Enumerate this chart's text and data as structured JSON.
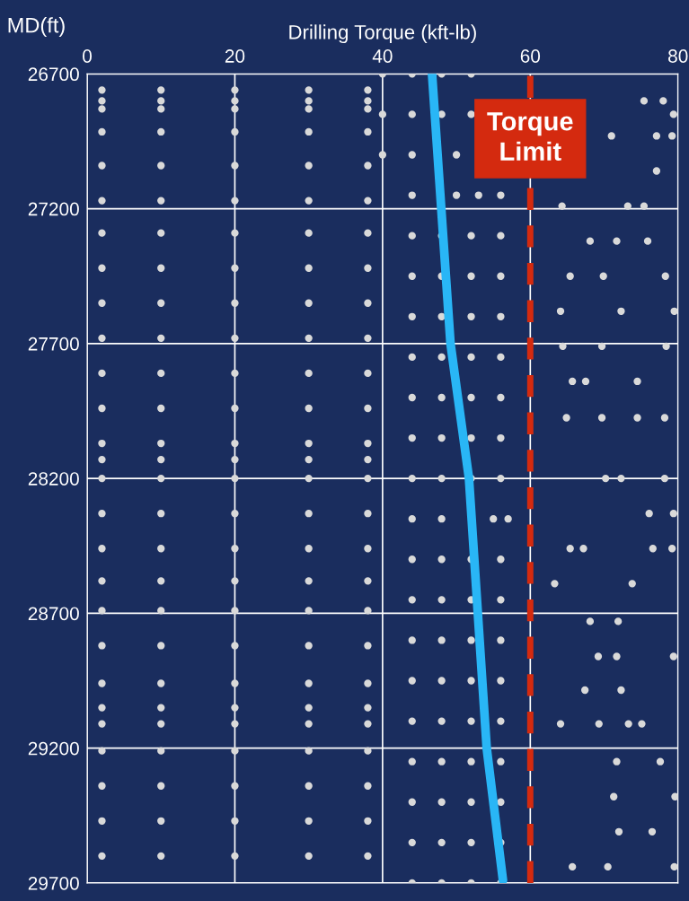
{
  "chart_data": {
    "type": "scatter",
    "xlabel": "Drilling Torque (kft-lb)",
    "ylabel": "MD(ft)",
    "xlim": [
      0,
      80
    ],
    "xticks": [
      0,
      20,
      40,
      60,
      80
    ],
    "ylim": [
      29700,
      26700
    ],
    "yticks": [
      26700,
      27200,
      27700,
      28200,
      28700,
      29200,
      29700
    ],
    "grid": true,
    "marker": "circle",
    "ref_lines": [
      {
        "axis": "x",
        "value": 60,
        "label": "Torque Limit",
        "color": "#d42a0f",
        "line_style": "dashed"
      }
    ],
    "series": [
      {
        "type": "scatter",
        "color": "#d9d9d9",
        "x": [
          2,
          10,
          20,
          30,
          38,
          2,
          10,
          20,
          30,
          38,
          2,
          10,
          20,
          30,
          38,
          2,
          10,
          20,
          30,
          38,
          2,
          10,
          20,
          30,
          38,
          2,
          10,
          20,
          30,
          38,
          2,
          10,
          20,
          30,
          38,
          2,
          10,
          20,
          30,
          38,
          2,
          10,
          20,
          30,
          38,
          2,
          10,
          20,
          30,
          38,
          2,
          10,
          20,
          30,
          38,
          2,
          10,
          20,
          30,
          38,
          2,
          10,
          20,
          30,
          38,
          2,
          10,
          20,
          30,
          38,
          2,
          10,
          20,
          30,
          38,
          2,
          10,
          20,
          30,
          38,
          2,
          10,
          20,
          30,
          38,
          2,
          10,
          20,
          30,
          38,
          2,
          10,
          20,
          30,
          38,
          2,
          10,
          20,
          30,
          38,
          2,
          10,
          20,
          30,
          38,
          2,
          10,
          20,
          30,
          38,
          2,
          10,
          20,
          30,
          38,
          2,
          10,
          20,
          30,
          38,
          2,
          10,
          20,
          30,
          38,
          2,
          10,
          20,
          30,
          38,
          2,
          10,
          20,
          30,
          38
        ],
        "values": [
          26760,
          26760,
          26760,
          26760,
          26760,
          26800,
          26800,
          26800,
          26800,
          26800,
          26830,
          26830,
          26830,
          26830,
          26830,
          26915,
          26915,
          26915,
          26915,
          26915,
          27040,
          27040,
          27040,
          27040,
          27040,
          27170,
          27170,
          27170,
          27170,
          27170,
          27290,
          27290,
          27290,
          27290,
          27290,
          27420,
          27420,
          27420,
          27420,
          27420,
          27550,
          27550,
          27550,
          27550,
          27550,
          27680,
          27680,
          27680,
          27680,
          27680,
          27810,
          27810,
          27810,
          27810,
          27810,
          27940,
          27940,
          27940,
          27940,
          27940,
          28070,
          28070,
          28070,
          28070,
          28070,
          28130,
          28130,
          28130,
          28130,
          28130,
          28200,
          28200,
          28200,
          28200,
          28200,
          28330,
          28330,
          28330,
          28330,
          28330,
          28460,
          28460,
          28460,
          28460,
          28460,
          28580,
          28580,
          28580,
          28580,
          28580,
          28690,
          28690,
          28690,
          28690,
          28690,
          28820,
          28820,
          28820,
          28820,
          28820,
          28960,
          28960,
          28960,
          28960,
          28960,
          29050,
          29050,
          29050,
          29050,
          29050,
          29110,
          29110,
          29110,
          29110,
          29110,
          29210,
          29210,
          29210,
          29210,
          29210,
          29340,
          29340,
          29340,
          29340,
          29340,
          29470,
          29470,
          29470,
          29470,
          29470,
          29600,
          29600,
          29600,
          29600,
          29600
        ]
      },
      {
        "color": "#d9d9d9",
        "x": [
          40,
          44,
          48,
          52,
          40,
          44,
          48,
          52,
          40,
          44,
          50,
          44,
          50,
          53,
          56,
          44,
          48,
          52,
          56,
          44,
          48,
          52,
          56,
          44,
          48,
          52,
          56,
          44,
          48,
          52,
          56,
          44,
          48,
          52,
          56,
          44,
          48,
          52,
          56,
          44,
          48,
          52,
          56,
          44,
          48,
          55,
          57,
          44,
          48,
          52,
          56,
          44,
          48,
          52,
          56,
          44,
          48,
          52,
          56,
          44,
          48,
          52,
          56,
          44,
          48,
          52,
          56,
          44,
          48,
          52,
          56,
          44,
          48,
          52,
          56,
          44,
          48,
          52,
          56,
          44,
          48,
          52,
          56
        ],
        "values": [
          26700,
          26700,
          26700,
          26700,
          26850,
          26850,
          26850,
          26850,
          27000,
          27000,
          27000,
          27150,
          27150,
          27150,
          27150,
          27300,
          27300,
          27300,
          27300,
          27450,
          27450,
          27450,
          27450,
          27600,
          27600,
          27600,
          27600,
          27750,
          27750,
          27750,
          27750,
          27900,
          27900,
          27900,
          27900,
          28050,
          28050,
          28050,
          28050,
          28200,
          28200,
          28200,
          28200,
          28350,
          28350,
          28350,
          28350,
          28500,
          28500,
          28500,
          28500,
          28650,
          28650,
          28650,
          28650,
          28800,
          28800,
          28800,
          28800,
          28950,
          28950,
          28950,
          28950,
          29100,
          29100,
          29100,
          29100,
          29250,
          29250,
          29250,
          29250,
          29400,
          29400,
          29400,
          29400,
          29550,
          29550,
          29550,
          29550,
          29700,
          29700,
          29700,
          29700
        ]
      },
      {
        "type": "scatter",
        "color": "#d9d9d9",
        "x": [
          75.4,
          78,
          79.4,
          71,
          77.1,
          79.2,
          77.1,
          64.3,
          73.2,
          75.4,
          68.1,
          71.7,
          75.9,
          65.4,
          69.9,
          78.3,
          64.1,
          72.3,
          79.5,
          64.4,
          69.7,
          78.4,
          65.7,
          67.5,
          74.5,
          64.9,
          69.7,
          74.5,
          78.2,
          70.2,
          72.3,
          78.2,
          76.1,
          79.4,
          65.4,
          67.2,
          76.6,
          79.2,
          63.3,
          73.8,
          68.1,
          71.9,
          69.2,
          71.7,
          79.4,
          67.4,
          72.3,
          64.1,
          69.3,
          73.3,
          75.1,
          71.7,
          77.6,
          71.3,
          79.6,
          72,
          76.5,
          65.7,
          70.5,
          79.5
        ],
        "values": [
          26800,
          26800,
          26850,
          26930,
          26930,
          26930,
          27060,
          27190,
          27190,
          27190,
          27320,
          27320,
          27320,
          27450,
          27450,
          27450,
          27580,
          27580,
          27580,
          27710,
          27710,
          27710,
          27840,
          27840,
          27840,
          27975,
          27975,
          27975,
          27975,
          28200,
          28200,
          28200,
          28330,
          28330,
          28460,
          28460,
          28460,
          28460,
          28590,
          28590,
          28730,
          28730,
          28860,
          28860,
          28860,
          28985,
          28985,
          29110,
          29110,
          29110,
          29110,
          29250,
          29250,
          29380,
          29380,
          29510,
          29510,
          29640,
          29640,
          29640
        ]
      },
      {
        "type": "line",
        "color": "#29b6f6",
        "marker": "none",
        "line_style": "solid",
        "x": [
          46.7,
          49.2,
          51.7,
          54.1,
          56.3
        ],
        "values": [
          26700,
          27700,
          28200,
          29200,
          29690
        ]
      }
    ]
  }
}
